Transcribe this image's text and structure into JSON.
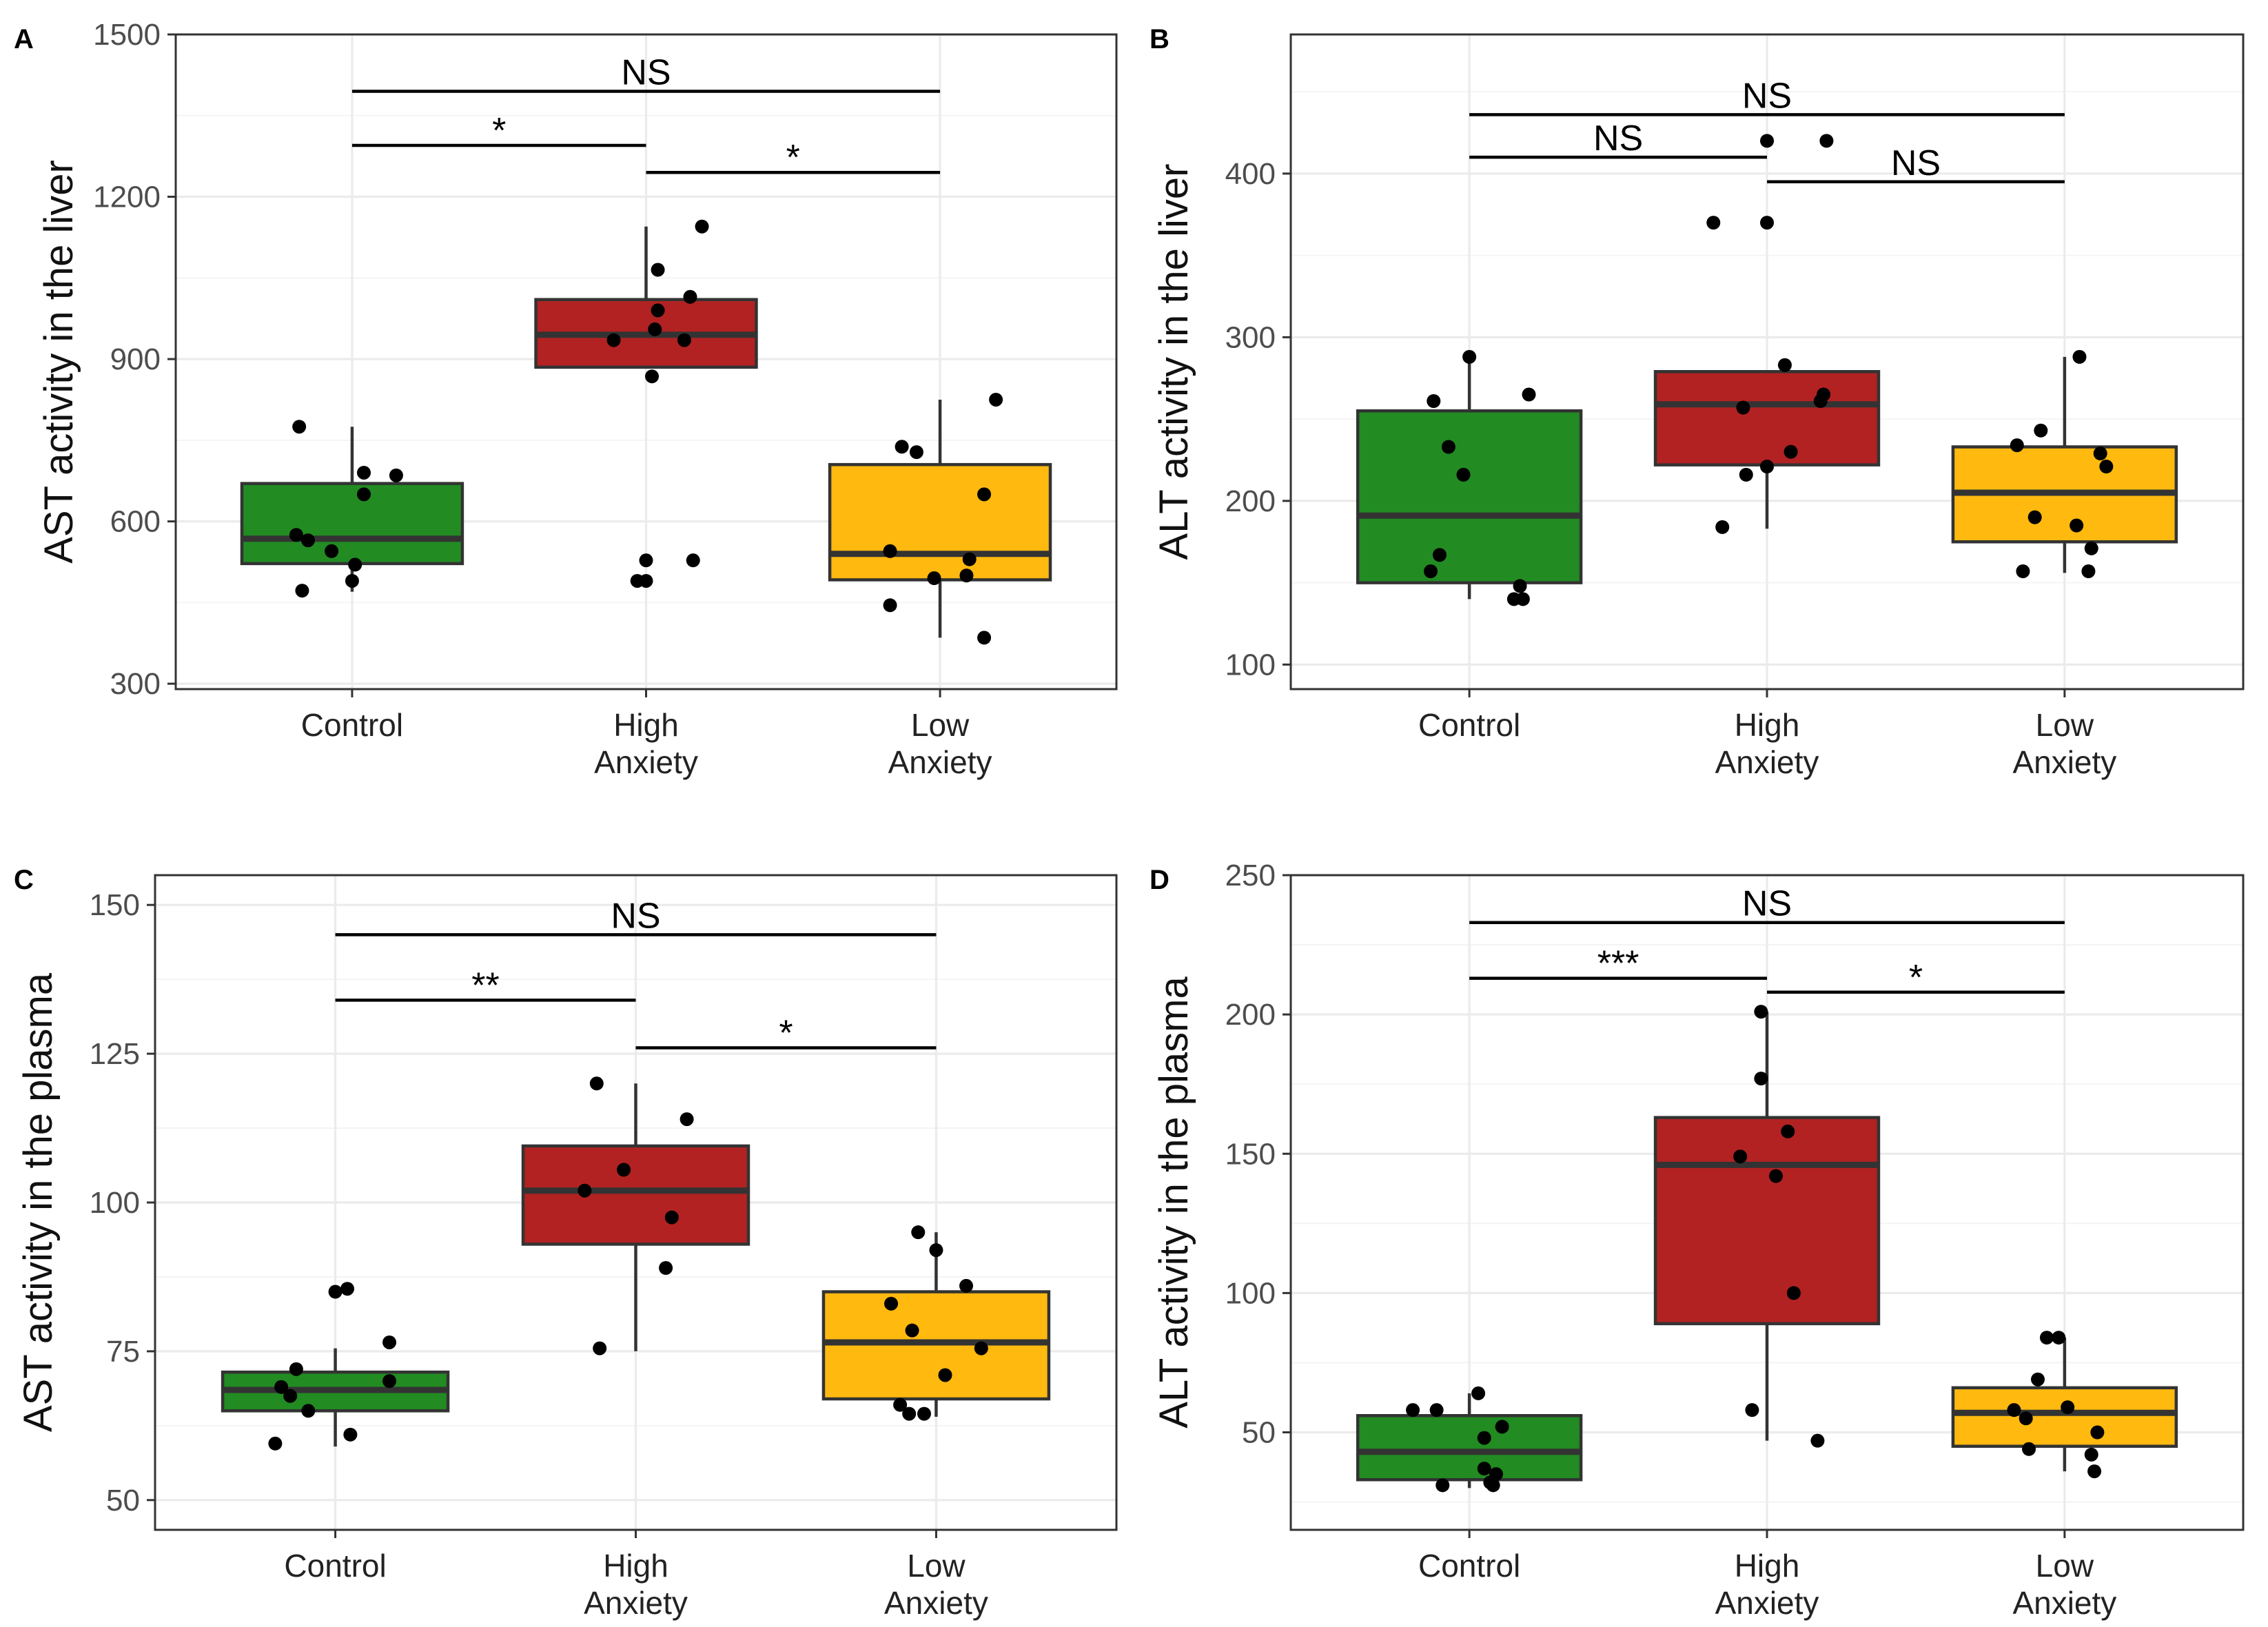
{
  "chart_data": [
    {
      "type": "box",
      "panel": "A",
      "ylabel": "AST activity in the liver",
      "ylim": [
        290,
        1500
      ],
      "yticks": [
        300,
        600,
        900,
        1200,
        1500
      ],
      "categories": [
        "Control",
        "High Anxiety",
        "Low Anxiety"
      ],
      "category_labels": [
        [
          "Control"
        ],
        [
          "High",
          "Anxiety"
        ],
        [
          "Low",
          "Anxiety"
        ]
      ],
      "colors": [
        "#228B22",
        "#B22222",
        "#FFB90F"
      ],
      "boxes": [
        {
          "q1": 522,
          "median": 568,
          "q3": 670,
          "whisker_low": 470,
          "whisker_high": 775
        },
        {
          "q1": 885,
          "median": 945,
          "q3": 1010,
          "whisker_low": 885,
          "whisker_high": 1145
        },
        {
          "q1": 492,
          "median": 540,
          "q3": 705,
          "whisker_low": 385,
          "whisker_high": 825
        }
      ],
      "points": [
        [
          [
            -0.18,
            775
          ],
          [
            0.04,
            690
          ],
          [
            0.15,
            685
          ],
          [
            0.04,
            650
          ],
          [
            -0.19,
            575
          ],
          [
            -0.15,
            565
          ],
          [
            -0.07,
            545
          ],
          [
            0.01,
            520
          ],
          [
            0.0,
            490
          ],
          [
            -0.17,
            472
          ]
        ],
        [
          [
            0.19,
            1145
          ],
          [
            0.04,
            1065
          ],
          [
            0.15,
            1015
          ],
          [
            0.04,
            990
          ],
          [
            -0.11,
            935
          ],
          [
            0.03,
            955
          ],
          [
            0.13,
            935
          ],
          [
            0.02,
            868
          ],
          [
            0.0,
            528
          ],
          [
            0.16,
            528
          ],
          [
            -0.03,
            490
          ],
          [
            0.0,
            490
          ]
        ],
        [
          [
            0.19,
            825
          ],
          [
            -0.13,
            738
          ],
          [
            -0.08,
            728
          ],
          [
            0.15,
            650
          ],
          [
            -0.17,
            545
          ],
          [
            0.1,
            530
          ],
          [
            -0.02,
            495
          ],
          [
            0.09,
            500
          ],
          [
            -0.17,
            445
          ],
          [
            0.15,
            385
          ]
        ]
      ],
      "brackets": [
        {
          "from": 0,
          "to": 2,
          "y": 1395,
          "label": "NS"
        },
        {
          "from": 0,
          "to": 1,
          "y": 1295,
          "label": "*"
        },
        {
          "from": 1,
          "to": 2,
          "y": 1245,
          "label": "*"
        }
      ]
    },
    {
      "type": "box",
      "panel": "B",
      "ylabel": "ALT activity in the liver",
      "ylim": [
        85,
        485
      ],
      "yticks": [
        100,
        200,
        300,
        400
      ],
      "categories": [
        "Control",
        "High Anxiety",
        "Low Anxiety"
      ],
      "category_labels": [
        [
          "Control"
        ],
        [
          "High",
          "Anxiety"
        ],
        [
          "Low",
          "Anxiety"
        ]
      ],
      "colors": [
        "#228B22",
        "#B22222",
        "#FFB90F"
      ],
      "boxes": [
        {
          "q1": 150,
          "median": 191,
          "q3": 255,
          "whisker_low": 140,
          "whisker_high": 288
        },
        {
          "q1": 222,
          "median": 259,
          "q3": 279,
          "whisker_low": 183,
          "whisker_high": 279
        },
        {
          "q1": 175,
          "median": 205,
          "q3": 233,
          "whisker_low": 156,
          "whisker_high": 288
        }
      ],
      "points": [
        [
          [
            0.0,
            288
          ],
          [
            0.2,
            265
          ],
          [
            -0.12,
            261
          ],
          [
            -0.07,
            233
          ],
          [
            -0.02,
            216
          ],
          [
            -0.1,
            167
          ],
          [
            -0.13,
            157
          ],
          [
            0.17,
            148
          ],
          [
            0.15,
            140
          ],
          [
            0.18,
            140
          ]
        ],
        [
          [
            0.0,
            420
          ],
          [
            0.2,
            420
          ],
          [
            -0.18,
            370
          ],
          [
            0.0,
            370
          ],
          [
            0.06,
            283
          ],
          [
            0.19,
            265
          ],
          [
            -0.08,
            257
          ],
          [
            0.18,
            261
          ],
          [
            0.08,
            230
          ],
          [
            -0.07,
            216
          ],
          [
            0.0,
            221
          ],
          [
            -0.15,
            184
          ]
        ],
        [
          [
            0.05,
            288
          ],
          [
            -0.08,
            243
          ],
          [
            -0.16,
            234
          ],
          [
            0.12,
            229
          ],
          [
            0.14,
            221
          ],
          [
            -0.1,
            190
          ],
          [
            0.04,
            185
          ],
          [
            0.09,
            171
          ],
          [
            -0.14,
            157
          ],
          [
            0.08,
            157
          ]
        ]
      ],
      "brackets": [
        {
          "from": 0,
          "to": 2,
          "y": 436,
          "label": "NS"
        },
        {
          "from": 0,
          "to": 1,
          "y": 410,
          "label": "NS"
        },
        {
          "from": 1,
          "to": 2,
          "y": 395,
          "label": "NS"
        }
      ]
    },
    {
      "type": "box",
      "panel": "C",
      "ylabel": "AST activity in the plasma",
      "ylim": [
        45,
        155
      ],
      "yticks": [
        50,
        75,
        100,
        125,
        150
      ],
      "categories": [
        "Control",
        "High Anxiety",
        "Low Anxiety"
      ],
      "category_labels": [
        [
          "Control"
        ],
        [
          "High",
          "Anxiety"
        ],
        [
          "Low",
          "Anxiety"
        ]
      ],
      "colors": [
        "#228B22",
        "#B22222",
        "#FFB90F"
      ],
      "boxes": [
        {
          "q1": 65,
          "median": 68.5,
          "q3": 71.5,
          "whisker_low": 59,
          "whisker_high": 75.5
        },
        {
          "q1": 93,
          "median": 102,
          "q3": 109.5,
          "whisker_low": 75,
          "whisker_high": 120
        },
        {
          "q1": 67,
          "median": 76.5,
          "q3": 85,
          "whisker_low": 64,
          "whisker_high": 95
        }
      ],
      "points": [
        [
          [
            0.0,
            85
          ],
          [
            0.04,
            85.5
          ],
          [
            0.18,
            76.5
          ],
          [
            -0.13,
            72
          ],
          [
            0.18,
            70
          ],
          [
            -0.18,
            69
          ],
          [
            -0.15,
            67.5
          ],
          [
            -0.09,
            65
          ],
          [
            0.05,
            61
          ],
          [
            -0.2,
            59.5
          ]
        ],
        [
          [
            -0.13,
            120
          ],
          [
            0.17,
            114
          ],
          [
            -0.04,
            105.5
          ],
          [
            -0.17,
            102
          ],
          [
            0.12,
            97.5
          ],
          [
            0.1,
            89
          ],
          [
            -0.12,
            75.5
          ]
        ],
        [
          [
            -0.06,
            95
          ],
          [
            0.0,
            92
          ],
          [
            0.1,
            86
          ],
          [
            -0.15,
            83
          ],
          [
            -0.08,
            78.5
          ],
          [
            0.15,
            75.5
          ],
          [
            0.03,
            71
          ],
          [
            -0.12,
            66
          ],
          [
            -0.09,
            64.5
          ],
          [
            -0.04,
            64.5
          ]
        ]
      ],
      "brackets": [
        {
          "from": 0,
          "to": 2,
          "y": 145,
          "label": "NS"
        },
        {
          "from": 0,
          "to": 1,
          "y": 134,
          "label": "**"
        },
        {
          "from": 1,
          "to": 2,
          "y": 126,
          "label": "*"
        }
      ]
    },
    {
      "type": "box",
      "panel": "D",
      "ylabel": "ALT activity in the plasma",
      "ylim": [
        15,
        250
      ],
      "yticks": [
        50,
        100,
        150,
        200,
        250
      ],
      "categories": [
        "Control",
        "High Anxiety",
        "Low Anxiety"
      ],
      "category_labels": [
        [
          "Control"
        ],
        [
          "High",
          "Anxiety"
        ],
        [
          "Low",
          "Anxiety"
        ]
      ],
      "colors": [
        "#228B22",
        "#B22222",
        "#FFB90F"
      ],
      "boxes": [
        {
          "q1": 33,
          "median": 43,
          "q3": 56,
          "whisker_low": 30,
          "whisker_high": 64
        },
        {
          "q1": 89,
          "median": 146,
          "q3": 163,
          "whisker_low": 47,
          "whisker_high": 201
        },
        {
          "q1": 45,
          "median": 57,
          "q3": 66,
          "whisker_low": 36,
          "whisker_high": 84
        }
      ],
      "points": [
        [
          [
            0.03,
            64
          ],
          [
            -0.19,
            58
          ],
          [
            -0.11,
            58
          ],
          [
            0.11,
            52
          ],
          [
            0.05,
            48
          ],
          [
            0.05,
            37
          ],
          [
            0.09,
            35
          ],
          [
            0.07,
            32
          ],
          [
            -0.09,
            31
          ],
          [
            0.08,
            31
          ]
        ],
        [
          [
            -0.02,
            201
          ],
          [
            -0.02,
            177
          ],
          [
            0.07,
            158
          ],
          [
            -0.09,
            149
          ],
          [
            0.03,
            142
          ],
          [
            0.09,
            100
          ],
          [
            -0.05,
            58
          ],
          [
            0.17,
            47
          ]
        ],
        [
          [
            -0.06,
            84
          ],
          [
            -0.02,
            84
          ],
          [
            -0.09,
            69
          ],
          [
            0.01,
            59
          ],
          [
            -0.17,
            58
          ],
          [
            -0.13,
            55
          ],
          [
            0.11,
            50
          ],
          [
            -0.12,
            44
          ],
          [
            0.09,
            42
          ],
          [
            0.1,
            36
          ]
        ]
      ],
      "brackets": [
        {
          "from": 0,
          "to": 2,
          "y": 233,
          "label": "NS"
        },
        {
          "from": 0,
          "to": 1,
          "y": 213,
          "label": "***"
        },
        {
          "from": 1,
          "to": 2,
          "y": 208,
          "label": "*"
        }
      ]
    }
  ]
}
